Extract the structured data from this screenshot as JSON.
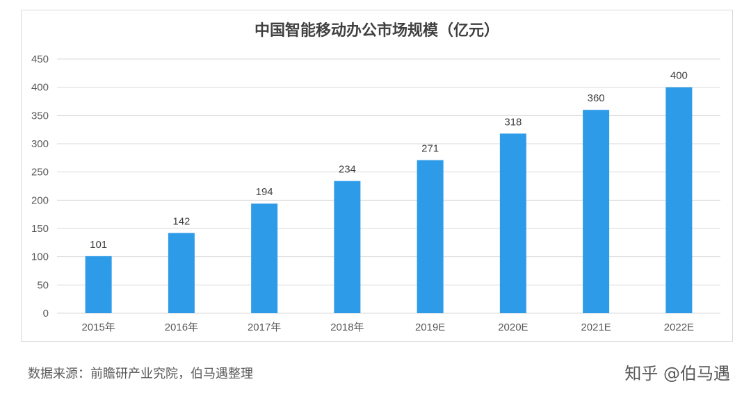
{
  "source_note": "数据来源：前瞻研产业究院，伯马遇整理",
  "credit": "知乎 @伯马遇",
  "colors": {
    "bar": "#2e9be8",
    "grid": "#d9d9d9",
    "text": "#595959"
  },
  "chart_data": {
    "type": "bar",
    "title": "中国智能移动办公市场规模（亿元）",
    "categories": [
      "2015年",
      "2016年",
      "2017年",
      "2018年",
      "2019E",
      "2020E",
      "2021E",
      "2022E"
    ],
    "values": [
      101,
      142,
      194,
      234,
      271,
      318,
      360,
      400
    ],
    "data_labels": [
      "101",
      "142",
      "194",
      "234",
      "271",
      "318",
      "360",
      "400"
    ],
    "ylim": [
      0,
      450
    ],
    "yticks": [
      "0",
      "50",
      "100",
      "150",
      "200",
      "250",
      "300",
      "350",
      "400",
      "450"
    ],
    "grid": true,
    "legend": false
  }
}
